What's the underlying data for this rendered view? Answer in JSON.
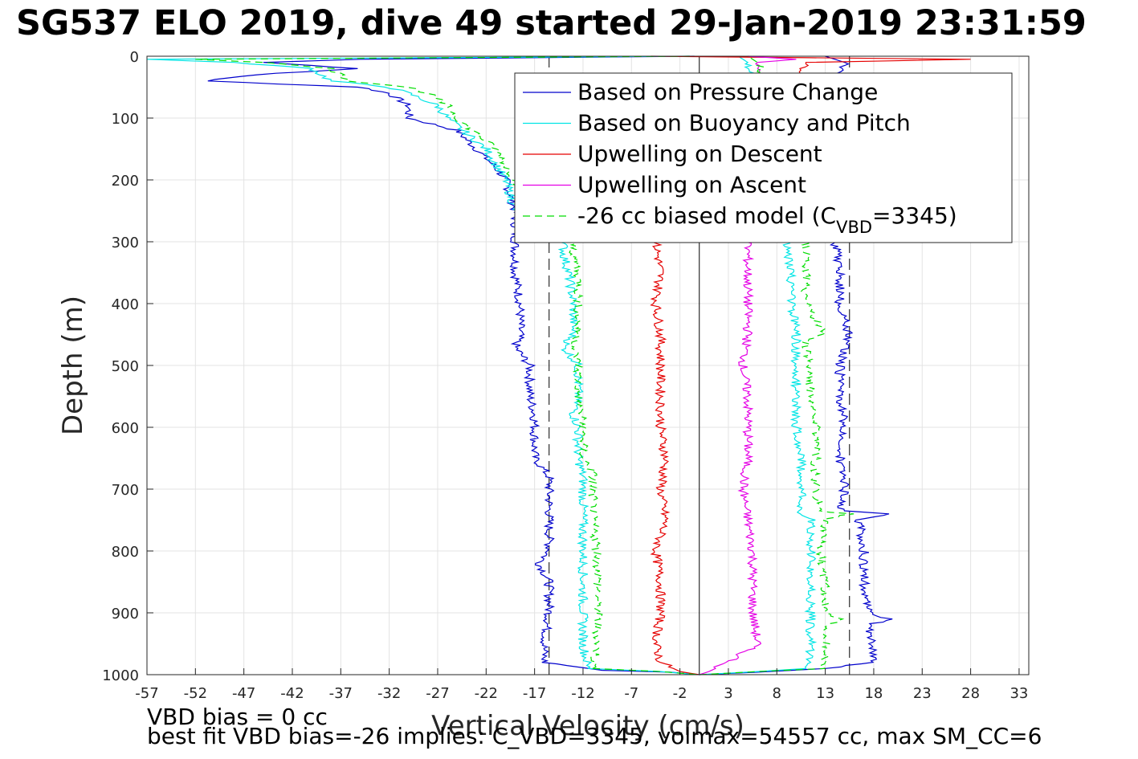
{
  "title": "SG537 ELO 2019, dive 49 started 29-Jan-2019 23:31:59",
  "footer": {
    "line1": "VBD bias = 0 cc",
    "line2": "best fit VBD bias=-26 implies: C_VBD=3345, volmax=54557 cc, max SM_CC=6"
  },
  "chart_data": {
    "type": "line",
    "title": "SG537 ELO 2019, dive 49 started 29-Jan-2019 23:31:59",
    "xlabel": "Vertical Velocity (cm/s)",
    "ylabel": "Depth (m)",
    "xlim": [
      -57,
      34
    ],
    "ylim": [
      1000,
      0
    ],
    "y_reversed": true,
    "x_ticks": [
      -57,
      -52,
      -47,
      -42,
      -37,
      -32,
      -27,
      -22,
      -17,
      -12,
      -7,
      -2,
      3,
      8,
      13,
      18,
      23,
      28,
      33
    ],
    "y_ticks": [
      0,
      100,
      200,
      300,
      400,
      500,
      600,
      700,
      800,
      900,
      1000
    ],
    "grid": true,
    "legend_position": "top-right",
    "reference_lines": [
      {
        "x": 0,
        "color": "#000000",
        "style": "solid"
      },
      {
        "x": -15.5,
        "color": "#000000",
        "style": "dashed"
      },
      {
        "x": 15.5,
        "color": "#000000",
        "style": "dashed"
      }
    ],
    "series": [
      {
        "name": "Based on Pressure Change",
        "color": "#0000cc",
        "style": "solid",
        "profiles": [
          {
            "depth": [
              0,
              5,
              10,
              20,
              30,
              40,
              50,
              60,
              80,
              100,
              120,
              150,
              180,
              200,
              250,
              300,
              320,
              350,
              400,
              450,
              470,
              500,
              550,
              580,
              600,
              650,
              680,
              700,
              750,
              800,
              820,
              850,
              900,
              950,
              980,
              993
            ],
            "x": [
              -0.5,
              -35,
              -45,
              -35,
              -46,
              -51,
              -35,
              -32,
              -30,
              -30,
              -25,
              -23,
              -21,
              -20,
              -19,
              -19,
              -19,
              -19,
              -18.5,
              -18.5,
              -19,
              -17.5,
              -17.5,
              -17,
              -17,
              -17,
              -15.5,
              -15.5,
              -15.5,
              -15.5,
              -16.5,
              -15.5,
              -15.5,
              -16,
              -16,
              -10
            ]
          },
          {
            "depth": [
              993,
              996,
              1000
            ],
            "x": [
              -10,
              -3,
              0
            ]
          },
          {
            "depth": [
              1000,
              996,
              990,
              980,
              950,
              920,
              910,
              900,
              850,
              800,
              750,
              740,
              735,
              700,
              650,
              600,
              550,
              500,
              450,
              400,
              350,
              300,
              200,
              100,
              50,
              10,
              0
            ],
            "x": [
              0,
              6,
              13,
              18,
              18,
              17.5,
              19.5,
              17.5,
              17,
              17,
              16.5,
              19.5,
              14.5,
              15,
              14.5,
              15,
              14.5,
              14.5,
              15.5,
              14.5,
              14.5,
              14,
              14,
              14,
              14,
              15,
              13
            ]
          }
        ]
      },
      {
        "name": "Based on Buoyancy and Pitch",
        "color": "#00e5e5",
        "style": "solid",
        "profiles": [
          {
            "depth": [
              0,
              5,
              10,
              20,
              40,
              50,
              60,
              80,
              100,
              150,
              200,
              250,
              300,
              320,
              350,
              400,
              450,
              470,
              500,
              550,
              580,
              600,
              650,
              680,
              700,
              750,
              800,
              850,
              900,
              950,
              990
            ],
            "x": [
              -1,
              -57,
              -48,
              -40,
              -38,
              -32,
              -30,
              -27,
              -26,
              -22,
              -20,
              -19,
              -14,
              -14,
              -13.5,
              -13,
              -13,
              -14,
              -12.5,
              -12.5,
              -13,
              -12.5,
              -12.5,
              -12,
              -12,
              -12,
              -12,
              -12,
              -12,
              -12,
              -11.5
            ]
          },
          {
            "depth": [
              990,
              995,
              1000
            ],
            "x": [
              -11.5,
              -4,
              0
            ]
          },
          {
            "depth": [
              1000,
              995,
              990,
              980,
              950,
              900,
              850,
              800,
              750,
              740,
              700,
              650,
              600,
              550,
              500,
              450,
              400,
              350,
              300,
              200,
              100,
              50,
              10,
              0
            ],
            "x": [
              0,
              6,
              11,
              11.5,
              11.5,
              11.5,
              11.5,
              11.5,
              11.5,
              10.5,
              10.5,
              10.5,
              10,
              10,
              10,
              10,
              9.5,
              9.5,
              9,
              9,
              8,
              6,
              5,
              4
            ]
          }
        ]
      },
      {
        "name": "Upwelling on Descent",
        "color": "#e50000",
        "style": "solid",
        "profiles": [
          {
            "depth": [
              0,
              5,
              10,
              300,
              350,
              400,
              450,
              500,
              550,
              600,
              650,
              700,
              750,
              800,
              850,
              900,
              950,
              980,
              995,
              1000
            ],
            "x": [
              -5,
              28,
              11,
              -4.5,
              -4,
              -4.5,
              -4,
              -4,
              -4,
              -4,
              -3.5,
              -4,
              -3.5,
              -4.5,
              -4,
              -4,
              -4.5,
              -4,
              -2,
              0
            ]
          }
        ]
      },
      {
        "name": "Upwelling on Ascent",
        "color": "#e500e5",
        "style": "solid",
        "profiles": [
          {
            "depth": [
              0,
              5,
              10,
              300,
              350,
              400,
              450,
              500,
              550,
              600,
              650,
              700,
              750,
              800,
              850,
              900,
              950,
              980,
              995,
              1000
            ],
            "x": [
              5,
              10,
              6,
              5,
              5,
              5,
              5,
              4.5,
              5,
              5,
              5,
              4.5,
              5,
              5.5,
              5.5,
              5.5,
              6,
              3,
              1,
              0
            ]
          }
        ]
      },
      {
        "name": "-26 cc biased model (C_VBD=3345)",
        "legend_label": "-26 cc biased model (C",
        "legend_sub": "VBD",
        "legend_suffix": "=3345)",
        "color": "#00dd00",
        "style": "dashed",
        "profiles": [
          {
            "depth": [
              0,
              5,
              10,
              20,
              40,
              50,
              60,
              80,
              100,
              150,
              200,
              250,
              300,
              320,
              350,
              400,
              450,
              470,
              500,
              550,
              600,
              650,
              670,
              700,
              750,
              800,
              850,
              900,
              950,
              990
            ],
            "x": [
              -1,
              -52,
              -45,
              -38,
              -36,
              -30,
              -28,
              -26,
              -25,
              -21,
              -19,
              -17,
              -13,
              -13,
              -12.5,
              -12.5,
              -12.5,
              -13,
              -12.5,
              -12.5,
              -12,
              -12,
              -11,
              -11,
              -11,
              -10.5,
              -10.5,
              -10.5,
              -10.5,
              -11
            ]
          },
          {
            "depth": [
              990,
              995,
              1000
            ],
            "x": [
              -11,
              -4,
              0
            ]
          },
          {
            "depth": [
              1000,
              995,
              990,
              950,
              920,
              910,
              900,
              850,
              800,
              750,
              740,
              735,
              700,
              650,
              600,
              550,
              500,
              460,
              450,
              400,
              350,
              300,
              200,
              100,
              50,
              10,
              0
            ],
            "x": [
              0,
              6,
              13,
              13,
              13,
              15,
              13,
              13,
              12.5,
              13,
              15.5,
              12.5,
              12,
              12,
              12,
              11.5,
              11.5,
              11,
              13,
              11,
              11,
              11,
              10,
              9,
              7,
              6,
              5
            ]
          }
        ]
      }
    ]
  }
}
